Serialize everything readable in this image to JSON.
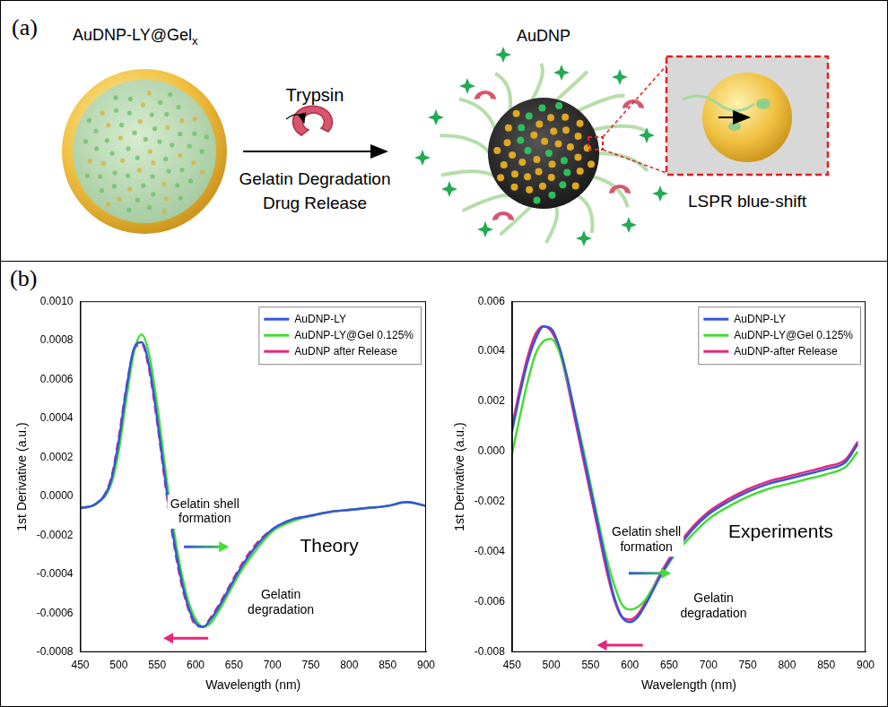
{
  "panel_a": {
    "label": "(a)",
    "left_title": "AuDNP-LY@Gel",
    "left_title_subscript": "x",
    "right_title": "AuDNP",
    "enzyme": "Trypsin",
    "process": [
      "Gelatin Degradation",
      "Drug Release"
    ],
    "inset_label": "LSPR blue-shift"
  },
  "panel_b": {
    "label": "(b)"
  },
  "chart_data": [
    {
      "type": "line",
      "x_label": "Wavelength (nm)",
      "y_label": "1st Derivative (a.u.)",
      "annotations": [
        "Gelatin shell formation",
        "Gelatin degradation",
        "Theory"
      ],
      "x": [
        450,
        470,
        490,
        500,
        510,
        520,
        530,
        540,
        550,
        560,
        570,
        580,
        590,
        600,
        610,
        620,
        630,
        640,
        660,
        680,
        700,
        725,
        750,
        775,
        800,
        825,
        850,
        875,
        900
      ],
      "series": [
        {
          "name": "AuDNP-LY",
          "color": "#3355dd",
          "line_style": "solid",
          "values": [
            -6e-05,
            -4e-05,
            8e-05,
            0.00028,
            0.00055,
            0.00076,
            0.00079,
            0.00066,
            0.0004,
            0.0001,
            -0.00018,
            -0.0004,
            -0.00056,
            -0.00065,
            -0.00067,
            -0.00063,
            -0.00057,
            -0.0005,
            -0.00036,
            -0.00025,
            -0.00017,
            -0.00012,
            -0.0001,
            -8e-05,
            -7e-05,
            -6e-05,
            -5e-05,
            -3e-05,
            -5e-05
          ]
        },
        {
          "name": "AuDNP-LY@Gel 0.125%",
          "color": "#44dd33",
          "line_style": "solid",
          "values": [
            -6e-05,
            -4e-05,
            6e-05,
            0.00023,
            0.0005,
            0.00074,
            0.00083,
            0.00072,
            0.00047,
            0.00016,
            -0.00013,
            -0.00036,
            -0.00053,
            -0.00063,
            -0.00067,
            -0.00065,
            -0.00059,
            -0.00052,
            -0.00038,
            -0.00027,
            -0.00018,
            -0.00013,
            -0.0001,
            -8e-05,
            -7e-05,
            -6e-05,
            -5e-05,
            -3e-05,
            -5e-05
          ]
        },
        {
          "name": "AuDNP after Release",
          "color": "#e8267a",
          "line_style": "dashed",
          "values": [
            -6e-05,
            -4e-05,
            9e-05,
            0.0003,
            0.00056,
            0.00075,
            0.00078,
            0.00064,
            0.00038,
            8e-05,
            -0.0002,
            -0.00042,
            -0.00057,
            -0.00066,
            -0.00067,
            -0.00062,
            -0.00056,
            -0.00049,
            -0.00035,
            -0.00024,
            -0.00017,
            -0.00012,
            -0.0001,
            -8e-05,
            -7e-05,
            -6e-05,
            -5e-05,
            -3e-05,
            -5e-05
          ]
        }
      ],
      "xlim": [
        450,
        900
      ],
      "xticks": [
        450,
        500,
        550,
        600,
        650,
        700,
        750,
        800,
        850,
        900
      ],
      "ylim": [
        -0.0008,
        0.001
      ],
      "yticks": [
        -0.0008,
        -0.0006,
        -0.0004,
        -0.0002,
        {
          "value": 0,
          "label": "0.0000"
        },
        0.0002,
        0.0004,
        0.0006,
        0.0008,
        {
          "value": 0.001,
          "label": "0.0010"
        }
      ],
      "grid": false,
      "legend": "upper right"
    },
    {
      "type": "line",
      "x_label": "Wavelength (nm)",
      "y_label": "1st Derivative (a.u.)",
      "annotations": [
        "Gelatin shell formation",
        "Gelatin degradation",
        "Experiments"
      ],
      "x": [
        450,
        460,
        470,
        480,
        490,
        500,
        510,
        520,
        530,
        540,
        550,
        560,
        570,
        580,
        590,
        600,
        610,
        620,
        630,
        640,
        660,
        680,
        700,
        725,
        750,
        775,
        800,
        825,
        850,
        875,
        890
      ],
      "series": [
        {
          "name": "AuDNP-LY",
          "color": "#3355dd",
          "line_style": "solid",
          "values": [
            0.0008,
            0.0023,
            0.0036,
            0.0045,
            0.005,
            0.0049,
            0.0042,
            0.003,
            0.0015,
            0.0,
            -0.0015,
            -0.003,
            -0.0045,
            -0.0058,
            -0.0066,
            -0.0068,
            -0.0066,
            -0.0061,
            -0.0055,
            -0.0049,
            -0.0039,
            -0.0031,
            -0.0025,
            -0.002,
            -0.0016,
            -0.0013,
            -0.0011,
            -0.0009,
            -0.0007,
            -0.0004,
            0.0003
          ]
        },
        {
          "name": "AuDNP-LY@Gel 0.125%",
          "color": "#44dd33",
          "line_style": "solid",
          "values": [
            -0.0001,
            0.0014,
            0.0028,
            0.0039,
            0.0044,
            0.0045,
            0.004,
            0.0029,
            0.0016,
            0.0002,
            -0.0013,
            -0.0028,
            -0.0042,
            -0.0053,
            -0.0061,
            -0.0063,
            -0.0062,
            -0.0059,
            -0.0054,
            -0.0049,
            -0.004,
            -0.0033,
            -0.0027,
            -0.0022,
            -0.0018,
            -0.0015,
            -0.0013,
            -0.0011,
            -0.0009,
            -0.0006,
            0.0
          ]
        },
        {
          "name": "AuDNP-after Release",
          "color": "#e8267a",
          "line_style": "solid",
          "values": [
            0.001,
            0.0025,
            0.0038,
            0.0047,
            0.005,
            0.0048,
            0.0041,
            0.0028,
            0.0013,
            -0.0002,
            -0.0017,
            -0.0032,
            -0.0047,
            -0.0059,
            -0.0066,
            -0.0067,
            -0.0065,
            -0.006,
            -0.0054,
            -0.0048,
            -0.0038,
            -0.003,
            -0.0024,
            -0.0019,
            -0.0015,
            -0.0012,
            -0.001,
            -0.0008,
            -0.0006,
            -0.0003,
            0.0004
          ]
        }
      ],
      "xlim": [
        450,
        900
      ],
      "xticks": [
        450,
        500,
        550,
        600,
        650,
        700,
        750,
        800,
        850,
        900
      ],
      "ylim": [
        -0.008,
        0.006
      ],
      "yticks": [
        -0.008,
        -0.006,
        -0.004,
        -0.002,
        {
          "value": 0,
          "label": "0.000"
        },
        0.002,
        0.004,
        0.006
      ],
      "grid": false,
      "legend": "upper right"
    }
  ]
}
